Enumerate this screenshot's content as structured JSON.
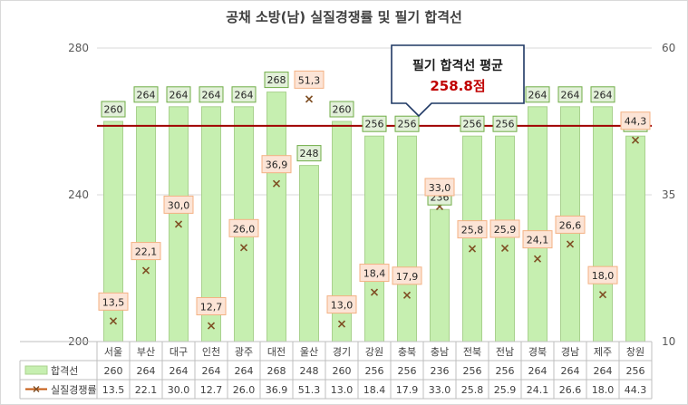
{
  "chart_data": {
    "type": "bar",
    "title": "공채 소방(남) 실질경쟁률 및 필기 합격선",
    "categories": [
      "서울",
      "부산",
      "대구",
      "인천",
      "광주",
      "대전",
      "울산",
      "경기",
      "강원",
      "충북",
      "충남",
      "전북",
      "전남",
      "경북",
      "경남",
      "제주",
      "창원"
    ],
    "series": [
      {
        "name": "합격선",
        "type": "bar",
        "axis": "left",
        "values": [
          260,
          264,
          264,
          264,
          264,
          268,
          248,
          260,
          256,
          256,
          236,
          256,
          256,
          264,
          264,
          264,
          256
        ],
        "labels": [
          "260",
          "264",
          "264",
          "264",
          "264",
          "268",
          "248",
          "260",
          "256",
          "256",
          "236",
          "256",
          "256",
          "264",
          "264",
          "264",
          "256"
        ],
        "color": "#c6efb0"
      },
      {
        "name": "실질경쟁률",
        "type": "scatter",
        "axis": "right",
        "values": [
          13.5,
          22.1,
          30.0,
          12.7,
          26.0,
          36.9,
          51.3,
          13.0,
          18.4,
          17.9,
          33.0,
          25.8,
          25.9,
          24.1,
          26.6,
          18.0,
          44.3
        ],
        "labels": [
          "13,5",
          "22,1",
          "30,0",
          "12,7",
          "26,0",
          "36,9",
          "51,3",
          "13,0",
          "18,4",
          "17,9",
          "33,0",
          "25,8",
          "25,9",
          "24,1",
          "26,6",
          "18,0",
          "44,3"
        ],
        "table_values": [
          "13.5",
          "22.1",
          "30.0",
          "12.7",
          "26.0",
          "36.9",
          "51.3",
          "13.0",
          "18.4",
          "17.9",
          "33.0",
          "25.8",
          "25.9",
          "24.1",
          "26.6",
          "18.0",
          "44.3"
        ],
        "color": "#c55a11"
      }
    ],
    "y_left": {
      "min": 200,
      "max": 280,
      "ticks": [
        "200",
        "240",
        "280"
      ]
    },
    "y_right": {
      "min": 10,
      "max": 60,
      "ticks": [
        "10",
        "35",
        "60"
      ]
    },
    "reference_line": {
      "value": 258.8,
      "color": "#a00000"
    },
    "annotation": {
      "title": "필기 합격선 평균",
      "value": "258.8점"
    },
    "legend_placement": "data-table-left"
  },
  "colors": {
    "bar_fill": "#c6efb0",
    "bar_stroke": "#a9d18e",
    "marker": "#7f4f24",
    "rate_label_fill": "#fce4d6",
    "rate_label_stroke": "#f4b183",
    "avg_line": "#a00000"
  }
}
